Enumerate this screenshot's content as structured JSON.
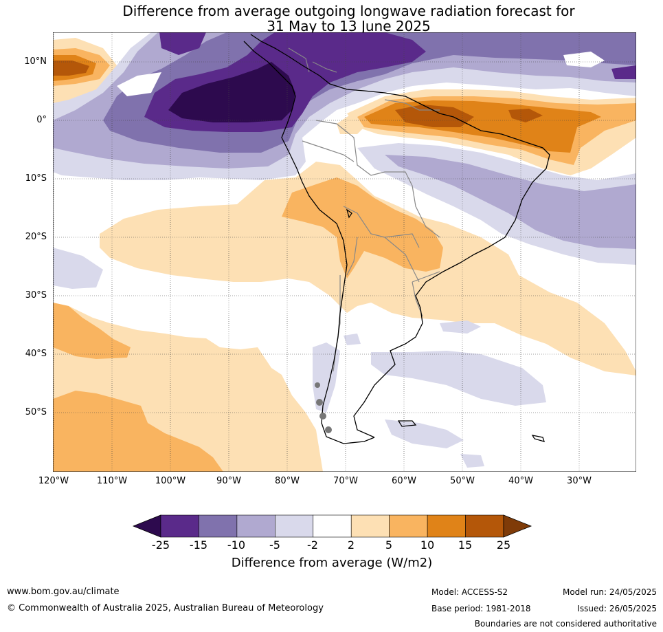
{
  "title_line1": "Difference from average outgoing longwave radiation forecast for",
  "title_line2": "31 May to 13 June 2025",
  "lat_labels": [
    "10°N",
    "0°",
    "10°S",
    "20°S",
    "30°S",
    "40°S",
    "50°S"
  ],
  "lon_labels": [
    "120°W",
    "110°W",
    "100°W",
    "90°W",
    "80°W",
    "70°W",
    "60°W",
    "50°W",
    "40°W",
    "30°W"
  ],
  "colorbar": {
    "ticks": [
      "-25",
      "-15",
      "-10",
      "-5",
      "-2",
      "2",
      "5",
      "10",
      "15",
      "25"
    ],
    "colors": [
      "#2d0a4e",
      "#5a2a8a",
      "#8072ad",
      "#b0a9d0",
      "#d9d9eb",
      "#ffffff",
      "#fde0b4",
      "#f9b460",
      "#e08318",
      "#b45709",
      "#7f3b08"
    ],
    "label": "Difference from average (W/m2)"
  },
  "footer": {
    "website": "www.bom.gov.au/climate",
    "copyright": "© Commonwealth of Australia 2025, Australian Bureau of Meteorology",
    "model": "Model: ACCESS-S2",
    "base_period": "Base period: 1981-2018",
    "model_run": "Model run: 24/05/2025",
    "issued": "Issued: 26/05/2025",
    "boundaries_note": "Boundaries are not considered authoritative"
  }
}
